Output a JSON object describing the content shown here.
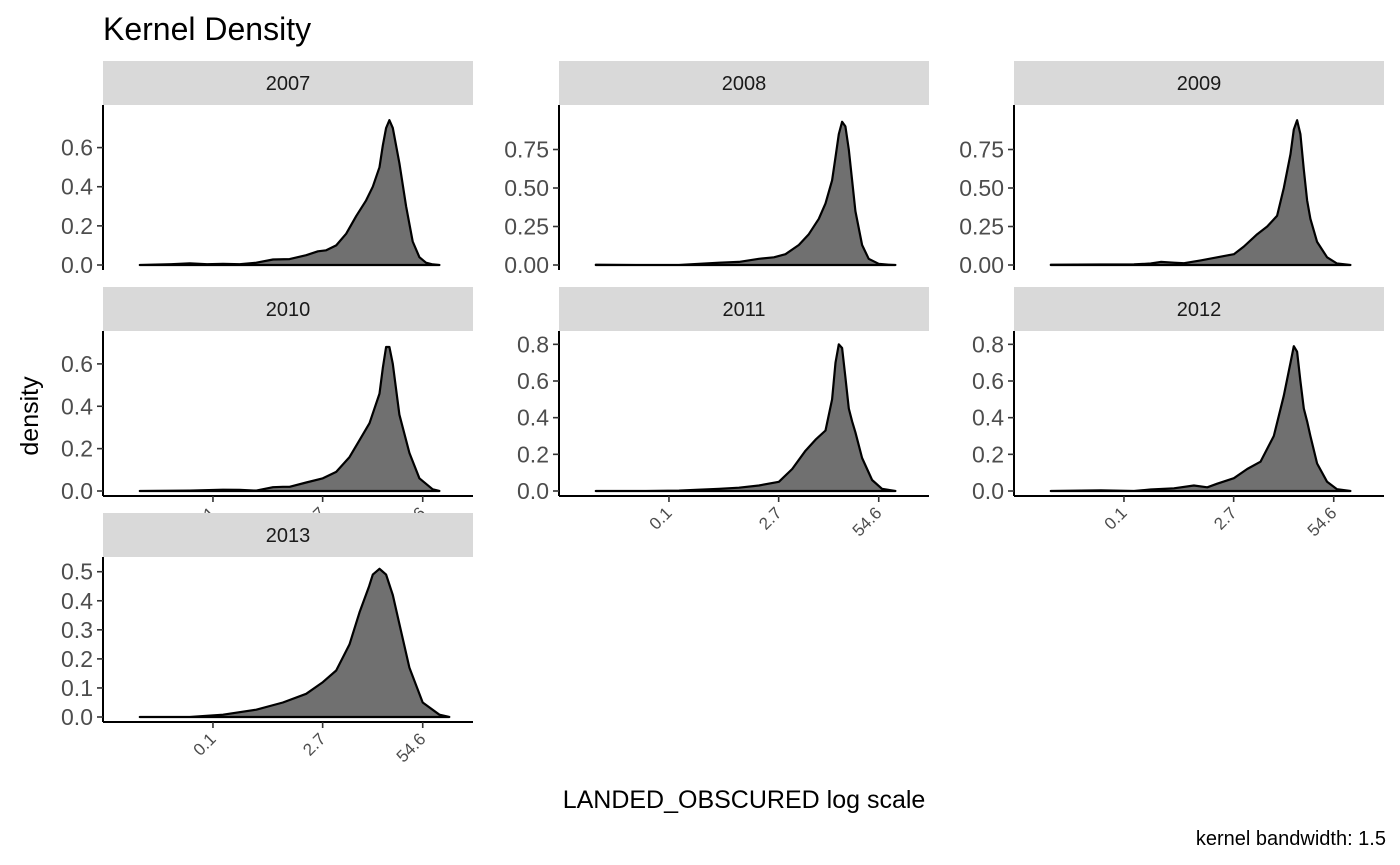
{
  "chart_data": {
    "type": "area",
    "title": "Kernel Density",
    "xlabel": "LANDED_OBSCURED  log scale",
    "ylabel": "density",
    "caption": "kernel bandwidth: 1.5",
    "x_scale": "log",
    "x_ticks": [
      0.1,
      2.7,
      54.6
    ],
    "x_tick_labels": [
      "0.1",
      "2.7",
      "54.6"
    ],
    "xlim": [
      0.0067,
      148.4
    ],
    "colors": {
      "fill": "#707070",
      "line": "#000000",
      "strip": "#d9d9d9"
    },
    "facets": [
      {
        "label": "2007",
        "y_ticks": [
          0.0,
          0.2,
          0.4,
          0.6
        ],
        "y_tick_labels": [
          "0.0",
          "0.2",
          "0.4",
          "0.6"
        ],
        "ylim": [
          0,
          0.787
        ],
        "x": [
          0.0111,
          0.0284,
          0.0498,
          0.0839,
          0.1353,
          0.2231,
          0.3679,
          0.6065,
          1.0,
          1.6487,
          2.3396,
          3.0042,
          4.0552,
          5.4739,
          7.3891,
          9.9742,
          12.1825,
          14.8797,
          16.4446,
          18.1741,
          20.0855,
          22.198,
          27.1126,
          33.1155,
          40.4473,
          49.4024,
          60.3403,
          73.6998,
          90.0171
        ],
        "y": [
          0.0,
          0.004,
          0.008,
          0.004,
          0.006,
          0.004,
          0.012,
          0.028,
          0.03,
          0.05,
          0.07,
          0.075,
          0.1,
          0.16,
          0.25,
          0.33,
          0.4,
          0.5,
          0.61,
          0.7,
          0.74,
          0.7,
          0.52,
          0.3,
          0.12,
          0.04,
          0.012,
          0.003,
          0.0
        ]
      },
      {
        "label": "2008",
        "y_ticks": [
          0.0,
          0.25,
          0.5,
          0.75
        ],
        "y_tick_labels": [
          "0.00",
          "0.25",
          "0.50",
          "0.75"
        ],
        "ylim": [
          0,
          1.0
        ],
        "x": [
          0.0111,
          0.0498,
          0.1353,
          0.2466,
          0.4493,
          0.8187,
          1.4918,
          2.3396,
          3.3201,
          4.953,
          6.6859,
          9.025,
          11.0232,
          13.4637,
          14.8797,
          16.4446,
          18.1741,
          20.0855,
          22.198,
          24.5325,
          27.1126,
          33.1155,
          40.4473,
          54.5982,
          73.6998,
          90.0171
        ],
        "y": [
          0.002,
          0.0,
          0.0,
          0.008,
          0.015,
          0.02,
          0.04,
          0.05,
          0.07,
          0.13,
          0.2,
          0.3,
          0.4,
          0.55,
          0.7,
          0.85,
          0.93,
          0.9,
          0.75,
          0.55,
          0.35,
          0.13,
          0.04,
          0.008,
          0.002,
          0.0
        ]
      },
      {
        "label": "2009",
        "y_ticks": [
          0.0,
          0.25,
          0.5,
          0.75
        ],
        "y_tick_labels": [
          "0.00",
          "0.25",
          "0.50",
          "0.75"
        ],
        "ylim": [
          0,
          1.0
        ],
        "x": [
          0.0111,
          0.0498,
          0.1353,
          0.2231,
          0.3012,
          0.4493,
          0.6065,
          1.0,
          1.6487,
          2.7183,
          3.6693,
          5.4739,
          7.3891,
          9.9742,
          12.1825,
          14.8797,
          16.4446,
          18.1741,
          20.0855,
          22.198,
          24.5325,
          27.1126,
          33.1155,
          44.7012,
          60.3403,
          90.0171
        ],
        "y": [
          0.002,
          0.003,
          0.004,
          0.01,
          0.02,
          0.015,
          0.012,
          0.03,
          0.05,
          0.07,
          0.12,
          0.2,
          0.25,
          0.32,
          0.5,
          0.72,
          0.88,
          0.94,
          0.85,
          0.62,
          0.42,
          0.3,
          0.15,
          0.05,
          0.01,
          0.0
        ]
      },
      {
        "label": "2010",
        "y_ticks": [
          0.0,
          0.2,
          0.4,
          0.6
        ],
        "y_tick_labels": [
          "0.0",
          "0.2",
          "0.4",
          "0.6"
        ],
        "ylim": [
          0,
          0.727
        ],
        "x": [
          0.0111,
          0.0498,
          0.1353,
          0.2231,
          0.3679,
          0.6065,
          0.8187,
          1.0,
          1.6487,
          2.7183,
          4.0552,
          6.0496,
          8.1662,
          11.0232,
          14.8797,
          16.4446,
          18.1741,
          20.0855,
          22.198,
          24.5325,
          27.1126,
          36.5982,
          49.4024,
          73.6998,
          90.0171
        ],
        "y": [
          0.0,
          0.002,
          0.006,
          0.005,
          0.002,
          0.018,
          0.02,
          0.02,
          0.04,
          0.06,
          0.09,
          0.16,
          0.24,
          0.32,
          0.46,
          0.58,
          0.68,
          0.68,
          0.6,
          0.48,
          0.36,
          0.18,
          0.06,
          0.008,
          0.0
        ]
      },
      {
        "label": "2011",
        "y_ticks": [
          0.0,
          0.2,
          0.4,
          0.6,
          0.8
        ],
        "y_tick_labels": [
          "0.0",
          "0.2",
          "0.4",
          "0.6",
          "0.8"
        ],
        "ylim": [
          0,
          0.84
        ],
        "x": [
          0.0111,
          0.0498,
          0.1353,
          0.2231,
          0.4493,
          0.8187,
          1.4918,
          2.7183,
          4.0552,
          6.0496,
          8.1662,
          11.0232,
          13.4637,
          14.8797,
          16.4446,
          18.1741,
          20.0855,
          22.198,
          24.5325,
          27.1126,
          33.1155,
          44.7012,
          60.3403,
          90.0171
        ],
        "y": [
          0.0,
          0.0,
          0.002,
          0.006,
          0.012,
          0.018,
          0.03,
          0.05,
          0.12,
          0.22,
          0.28,
          0.33,
          0.5,
          0.7,
          0.8,
          0.78,
          0.62,
          0.45,
          0.38,
          0.32,
          0.18,
          0.06,
          0.012,
          0.0
        ]
      },
      {
        "label": "2012",
        "y_ticks": [
          0.0,
          0.2,
          0.4,
          0.6,
          0.8
        ],
        "y_tick_labels": [
          "0.0",
          "0.2",
          "0.4",
          "0.6",
          "0.8"
        ],
        "ylim": [
          0,
          0.84
        ],
        "x": [
          0.0111,
          0.0498,
          0.1353,
          0.2231,
          0.4493,
          0.8187,
          1.2214,
          1.6487,
          2.7183,
          4.0552,
          6.0496,
          9.025,
          12.1825,
          14.8797,
          16.4446,
          18.1741,
          20.0855,
          22.198,
          24.5325,
          27.1126,
          33.1155,
          44.7012,
          60.3403,
          90.0171
        ],
        "y": [
          0.0,
          0.004,
          0.0,
          0.008,
          0.015,
          0.03,
          0.02,
          0.04,
          0.07,
          0.12,
          0.16,
          0.3,
          0.52,
          0.7,
          0.79,
          0.76,
          0.6,
          0.45,
          0.38,
          0.3,
          0.15,
          0.05,
          0.01,
          0.0
        ]
      },
      {
        "label": "2013",
        "y_ticks": [
          0.0,
          0.1,
          0.2,
          0.3,
          0.4,
          0.5
        ],
        "y_tick_labels": [
          "0.0",
          "0.1",
          "0.2",
          "0.3",
          "0.4",
          "0.5"
        ],
        "ylim": [
          0,
          0.53
        ],
        "x": [
          0.0111,
          0.0498,
          0.1353,
          0.3679,
          0.8187,
          1.6487,
          2.7183,
          4.0552,
          6.0496,
          8.1662,
          10.9,
          12.1825,
          14.8797,
          18.1741,
          22.198,
          27.1126,
          36.5982,
          54.5982,
          90.0171,
          121.5
        ],
        "y": [
          0.0,
          0.0,
          0.008,
          0.025,
          0.05,
          0.08,
          0.12,
          0.16,
          0.25,
          0.36,
          0.45,
          0.49,
          0.51,
          0.49,
          0.42,
          0.32,
          0.17,
          0.05,
          0.008,
          0.0
        ]
      }
    ]
  }
}
